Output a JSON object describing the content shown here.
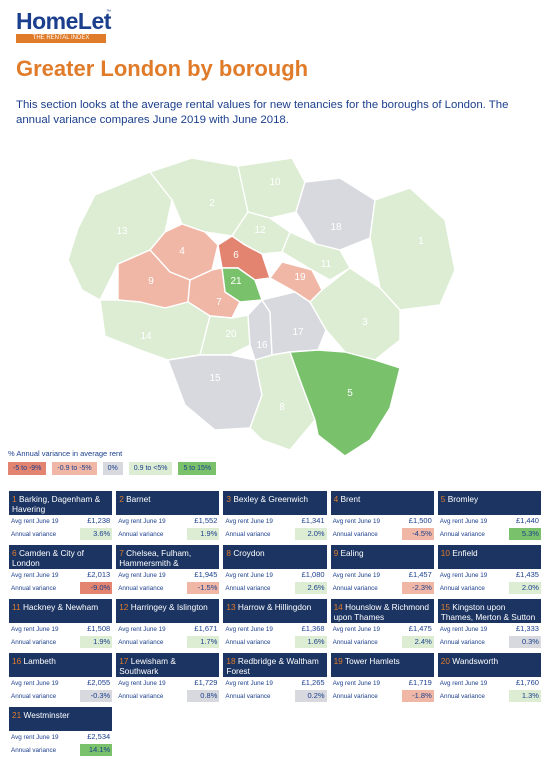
{
  "brand": {
    "name": "HomeLet",
    "tm": "™",
    "tagline": "THE RENTAL INDEX"
  },
  "page_title": "Greater London by borough",
  "intro": "This section looks at the average rental values for new tenancies for the boroughs of London. The annual variance compares June 2019 with June 2018.",
  "colors": {
    "brand_blue": "#1b3f8c",
    "brand_orange": "#e07b2a",
    "header_navy": "#1b3462",
    "band_neg_high": "#e38470",
    "band_neg_low": "#f1b7a6",
    "band_zero": "#d7d9de",
    "band_pos_low": "#dcedd3",
    "band_pos_high": "#79c26b"
  },
  "legend": {
    "title": "% Annual variance in average rent",
    "items": [
      {
        "label": "-5 to -9%",
        "color": "#e38470"
      },
      {
        "label": "-0.9 to -5%",
        "color": "#f1b7a6"
      },
      {
        "label": "0%",
        "color": "#d7d9de"
      },
      {
        "label": "0.9 to <5%",
        "color": "#dcedd3"
      },
      {
        "label": "5 to 15%",
        "color": "#79c26b"
      }
    ]
  },
  "map_labels": [
    "1",
    "2",
    "3",
    "4",
    "5",
    "6",
    "7",
    "8",
    "9",
    "10",
    "11",
    "12",
    "13",
    "14",
    "15",
    "16",
    "17",
    "18",
    "19",
    "20",
    "21"
  ],
  "row_labels": {
    "rent": "Avg rent June 19",
    "variance": "Annual variance"
  },
  "boroughs": [
    {
      "num": "1",
      "name": "Barking, Dagenham & Havering",
      "rent": "£1,238",
      "variance": "3.6%",
      "band": "#dcedd3"
    },
    {
      "num": "2",
      "name": "Barnet",
      "rent": "£1,552",
      "variance": "1.9%",
      "band": "#dcedd3"
    },
    {
      "num": "3",
      "name": "Bexley & Greenwich",
      "rent": "£1,341",
      "variance": "2.0%",
      "band": "#dcedd3"
    },
    {
      "num": "4",
      "name": "Brent",
      "rent": "£1,500",
      "variance": "-4.5%",
      "band": "#f1b7a6"
    },
    {
      "num": "5",
      "name": "Bromley",
      "rent": "£1,440",
      "variance": "5.3%",
      "band": "#79c26b"
    },
    {
      "num": "6",
      "name": "Camden & City of London",
      "rent": "£2,013",
      "variance": "-9.0%",
      "band": "#e38470"
    },
    {
      "num": "7",
      "name": "Chelsea, Fulham, Hammersmith & Kensington",
      "rent": "£1,945",
      "variance": "-1.5%",
      "band": "#f1b7a6"
    },
    {
      "num": "8",
      "name": "Croydon",
      "rent": "£1,080",
      "variance": "2.6%",
      "band": "#dcedd3"
    },
    {
      "num": "9",
      "name": "Ealing",
      "rent": "£1,457",
      "variance": "-2.3%",
      "band": "#f1b7a6"
    },
    {
      "num": "10",
      "name": "Enfield",
      "rent": "£1,435",
      "variance": "2.0%",
      "band": "#dcedd3"
    },
    {
      "num": "11",
      "name": "Hackney & Newham",
      "rent": "£1,508",
      "variance": "1.9%",
      "band": "#dcedd3"
    },
    {
      "num": "12",
      "name": "Harringey & Islington",
      "rent": "£1,671",
      "variance": "1.7%",
      "band": "#dcedd3"
    },
    {
      "num": "13",
      "name": "Harrow & Hillingdon",
      "rent": "£1,368",
      "variance": "1.6%",
      "band": "#dcedd3"
    },
    {
      "num": "14",
      "name": "Hounslow & Richmond upon Thames",
      "rent": "£1,475",
      "variance": "2.4%",
      "band": "#dcedd3"
    },
    {
      "num": "15",
      "name": "Kingston upon Thames, Merton & Sutton",
      "rent": "£1,333",
      "variance": "0.3%",
      "band": "#d7d9de"
    },
    {
      "num": "16",
      "name": "Lambeth",
      "rent": "£2,055",
      "variance": "-0.3%",
      "band": "#d7d9de"
    },
    {
      "num": "17",
      "name": "Lewisham & Southwark",
      "rent": "£1,729",
      "variance": "0.8%",
      "band": "#d7d9de"
    },
    {
      "num": "18",
      "name": "Redbridge & Waltham Forest",
      "rent": "£1,265",
      "variance": "0.2%",
      "band": "#d7d9de"
    },
    {
      "num": "19",
      "name": "Tower Hamlets",
      "rent": "£1,719",
      "variance": "-1.8%",
      "band": "#f1b7a6"
    },
    {
      "num": "20",
      "name": "Wandsworth",
      "rent": "£1,760",
      "variance": "1.3%",
      "band": "#dcedd3"
    },
    {
      "num": "21",
      "name": "Westminster",
      "rent": "£2,534",
      "variance": "14.1%",
      "band": "#79c26b"
    }
  ]
}
